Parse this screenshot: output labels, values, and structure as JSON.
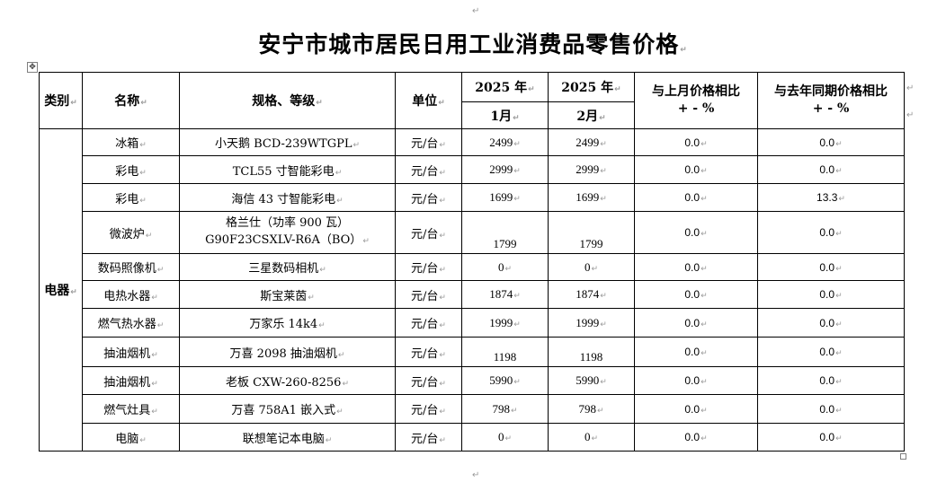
{
  "title": "安宁市城市居民日用工业消费品零售价格",
  "headers": {
    "category": "类别",
    "name": "名称",
    "spec": "规格、等级",
    "unit": "单位",
    "period1_year": "2025 年",
    "period1_month": "1月",
    "period2_year": "2025 年",
    "period2_month": "2月",
    "mom_line1": "与上月价格相比",
    "mom_line2": "+ - %",
    "yoy_line1": "与去年同期价格相比",
    "yoy_line2": "+ - %"
  },
  "category": "电器",
  "rows": [
    {
      "name": "冰箱",
      "spec": "小天鹅  BCD-239WTGPL",
      "unit": "元/台",
      "jan": "2499",
      "feb": "2499",
      "mom": "0.0",
      "yoy": "0.0"
    },
    {
      "name": "彩电",
      "spec": "TCL55 寸智能彩电",
      "unit": "元/台",
      "jan": "2999",
      "feb": "2999",
      "mom": "0.0",
      "yoy": "0.0"
    },
    {
      "name": "彩电",
      "spec": "海信 43 寸智能彩电",
      "unit": "元/台",
      "jan": "1699",
      "feb": "1699",
      "mom": "0.0",
      "yoy": "13.3"
    },
    {
      "name": "微波炉",
      "spec": "格兰仕（功率 900 瓦）",
      "spec2": "G90F23CSXLV-R6A（BO）",
      "unit": "元/台",
      "jan": "1799",
      "feb": "1799",
      "mom": "0.0",
      "yoy": "0.0"
    },
    {
      "name": "数码照像机",
      "spec": "三星数码相机",
      "unit": "元/台",
      "jan": "0",
      "feb": "0",
      "mom": "0.0",
      "yoy": "0.0"
    },
    {
      "name": "电热水器",
      "spec": "斯宝莱茵",
      "unit": "元/台",
      "jan": "1874",
      "feb": "1874",
      "mom": "0.0",
      "yoy": "0.0"
    },
    {
      "name": "燃气热水器",
      "spec": "万家乐 14k4",
      "unit": "元/台",
      "jan": "1999",
      "feb": "1999",
      "mom": "0.0",
      "yoy": "0.0"
    },
    {
      "name": "抽油烟机",
      "spec": "万喜 2098 抽油烟机",
      "unit": "元/台",
      "jan": "1198",
      "feb": "1198",
      "mom": "0.0",
      "yoy": "0.0"
    },
    {
      "name": "抽油烟机",
      "spec": "老板 CXW-260-8256",
      "unit": "元/台",
      "jan": "5990",
      "feb": "5990",
      "mom": "0.0",
      "yoy": "0.0"
    },
    {
      "name": "燃气灶具",
      "spec": "万喜 758A1 嵌入式",
      "unit": "元/台",
      "jan": "798",
      "feb": "798",
      "mom": "0.0",
      "yoy": "0.0"
    },
    {
      "name": "电脑",
      "spec": "联想笔记本电脑",
      "unit": "元/台",
      "jan": "0",
      "feb": "0",
      "mom": "0.0",
      "yoy": "0.0"
    }
  ]
}
